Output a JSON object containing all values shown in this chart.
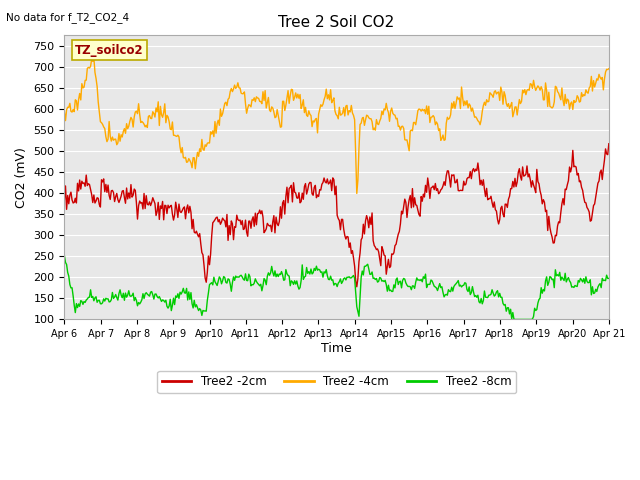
{
  "title": "Tree 2 Soil CO2",
  "top_left_text": "No data for f_T2_CO2_4",
  "ylabel": "CO2 (mV)",
  "xlabel": "Time",
  "legend_box_label": "TZ_soilco2",
  "plot_bg_color": "#e8e8e8",
  "fig_bg_color": "#ffffff",
  "ylim": [
    100,
    775
  ],
  "yticks": [
    100,
    150,
    200,
    250,
    300,
    350,
    400,
    450,
    500,
    550,
    600,
    650,
    700,
    750
  ],
  "xtick_labels": [
    "Apr 6",
    "Apr 7",
    "Apr 8",
    "Apr 9",
    "Apr10",
    "Apr11",
    "Apr12",
    "Apr13",
    "Apr14",
    "Apr15",
    "Apr16",
    "Apr17",
    "Apr18",
    "Apr19",
    "Apr20",
    "Apr 21"
  ],
  "series": {
    "red": {
      "label": "Tree2 -2cm",
      "color": "#cc0000"
    },
    "orange": {
      "label": "Tree2 -4cm",
      "color": "#ffaa00"
    },
    "green": {
      "label": "Tree2 -8cm",
      "color": "#00cc00"
    }
  },
  "n_points": 500
}
